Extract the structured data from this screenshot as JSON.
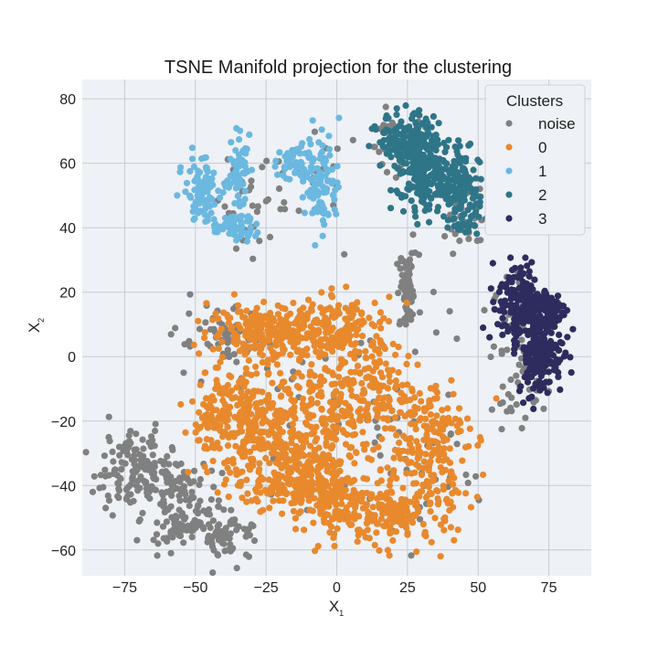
{
  "chart_data": {
    "type": "scatter",
    "title": "TSNE Manifold projection for the clustering",
    "xlabel": "X",
    "xlabel_sub": "1",
    "ylabel": "X",
    "ylabel_sub": "2",
    "xlim": [
      -90,
      90
    ],
    "ylim": [
      -68,
      86
    ],
    "xticks": [
      -75,
      -50,
      -25,
      0,
      25,
      50,
      75
    ],
    "yticks": [
      -60,
      -40,
      -20,
      0,
      20,
      40,
      60,
      80
    ],
    "xtick_labels": [
      "−75",
      "−50",
      "−25",
      "0",
      "25",
      "50",
      "75"
    ],
    "ytick_labels": [
      "−60",
      "−40",
      "−20",
      "0",
      "20",
      "40",
      "60",
      "80"
    ],
    "grid": true,
    "background": "#eef1f5",
    "legend": {
      "title": "Clusters",
      "placement": "top-right",
      "entries": [
        "noise",
        "0",
        "1",
        "2",
        "3"
      ]
    },
    "series": [
      {
        "name": "noise",
        "color": "#808080",
        "regions": [
          {
            "cx": 25,
            "cy": 20,
            "sx": 2,
            "sy": 6,
            "n": 60
          },
          {
            "cx": 65,
            "cy": 5,
            "sx": 5,
            "sy": 10,
            "n": 60
          },
          {
            "cx": 22,
            "cy": 68,
            "sx": 5,
            "sy": 6,
            "n": 30
          },
          {
            "cx": 45,
            "cy": 42,
            "sx": 4,
            "sy": 5,
            "n": 30
          },
          {
            "cx": -30,
            "cy": 50,
            "sx": 6,
            "sy": 10,
            "n": 30
          },
          {
            "cx": -12,
            "cy": 55,
            "sx": 6,
            "sy": 8,
            "n": 20
          },
          {
            "cx": -72,
            "cy": -35,
            "sx": 7,
            "sy": 6,
            "n": 140
          },
          {
            "cx": -58,
            "cy": -40,
            "sx": 6,
            "sy": 4,
            "n": 60
          },
          {
            "cx": -55,
            "cy": -52,
            "sx": 7,
            "sy": 4,
            "n": 90
          },
          {
            "cx": -38,
            "cy": -55,
            "sx": 5,
            "sy": 4,
            "n": 60
          },
          {
            "cx": -40,
            "cy": 5,
            "sx": 8,
            "sy": 5,
            "n": 60
          },
          {
            "cx": 25,
            "cy": -35,
            "sx": 12,
            "sy": 8,
            "n": 40
          },
          {
            "cx": 60,
            "cy": -15,
            "sx": 4,
            "sy": 4,
            "n": 15
          },
          {
            "cx": 0,
            "cy": -10,
            "sx": 25,
            "sy": 20,
            "n": 40
          }
        ]
      },
      {
        "name": "0",
        "color": "#e8892d",
        "regions": [
          {
            "cx": -25,
            "cy": 8,
            "sx": 10,
            "sy": 4,
            "n": 200
          },
          {
            "cx": 0,
            "cy": 8,
            "sx": 10,
            "sy": 5,
            "n": 200
          },
          {
            "cx": -40,
            "cy": -20,
            "sx": 6,
            "sy": 8,
            "n": 160
          },
          {
            "cx": -25,
            "cy": -25,
            "sx": 8,
            "sy": 10,
            "n": 240
          },
          {
            "cx": -5,
            "cy": -25,
            "sx": 8,
            "sy": 12,
            "n": 240
          },
          {
            "cx": 10,
            "cy": -10,
            "sx": 8,
            "sy": 6,
            "n": 120
          },
          {
            "cx": 30,
            "cy": -25,
            "sx": 8,
            "sy": 10,
            "n": 200
          },
          {
            "cx": 22,
            "cy": -48,
            "sx": 10,
            "sy": 5,
            "n": 200
          },
          {
            "cx": -15,
            "cy": -40,
            "sx": 8,
            "sy": 5,
            "n": 120
          },
          {
            "cx": 0,
            "cy": -45,
            "sx": 5,
            "sy": 5,
            "n": 80
          }
        ]
      },
      {
        "name": "1",
        "color": "#6bb8e0",
        "regions": [
          {
            "cx": -48,
            "cy": 52,
            "sx": 3,
            "sy": 5,
            "n": 90
          },
          {
            "cx": -36,
            "cy": 40,
            "sx": 4,
            "sy": 2,
            "n": 60
          },
          {
            "cx": -35,
            "cy": 58,
            "sx": 2,
            "sy": 5,
            "n": 60
          },
          {
            "cx": -15,
            "cy": 60,
            "sx": 3,
            "sy": 3,
            "n": 50
          },
          {
            "cx": -5,
            "cy": 55,
            "sx": 3,
            "sy": 8,
            "n": 90
          }
        ]
      },
      {
        "name": "2",
        "color": "#2e7588",
        "regions": [
          {
            "cx": 25,
            "cy": 68,
            "sx": 5,
            "sy": 4,
            "n": 120
          },
          {
            "cx": 30,
            "cy": 58,
            "sx": 5,
            "sy": 7,
            "n": 180
          },
          {
            "cx": 40,
            "cy": 55,
            "sx": 5,
            "sy": 5,
            "n": 120
          },
          {
            "cx": 45,
            "cy": 45,
            "sx": 3,
            "sy": 5,
            "n": 60
          }
        ]
      },
      {
        "name": "3",
        "color": "#2e2c5e",
        "regions": [
          {
            "cx": 65,
            "cy": 18,
            "sx": 4,
            "sy": 6,
            "n": 150
          },
          {
            "cx": 75,
            "cy": 15,
            "sx": 3,
            "sy": 3,
            "n": 80
          },
          {
            "cx": 72,
            "cy": 0,
            "sx": 4,
            "sy": 6,
            "n": 150
          },
          {
            "cx": 68,
            "cy": 10,
            "sx": 5,
            "sy": 3,
            "n": 60
          }
        ]
      }
    ]
  }
}
